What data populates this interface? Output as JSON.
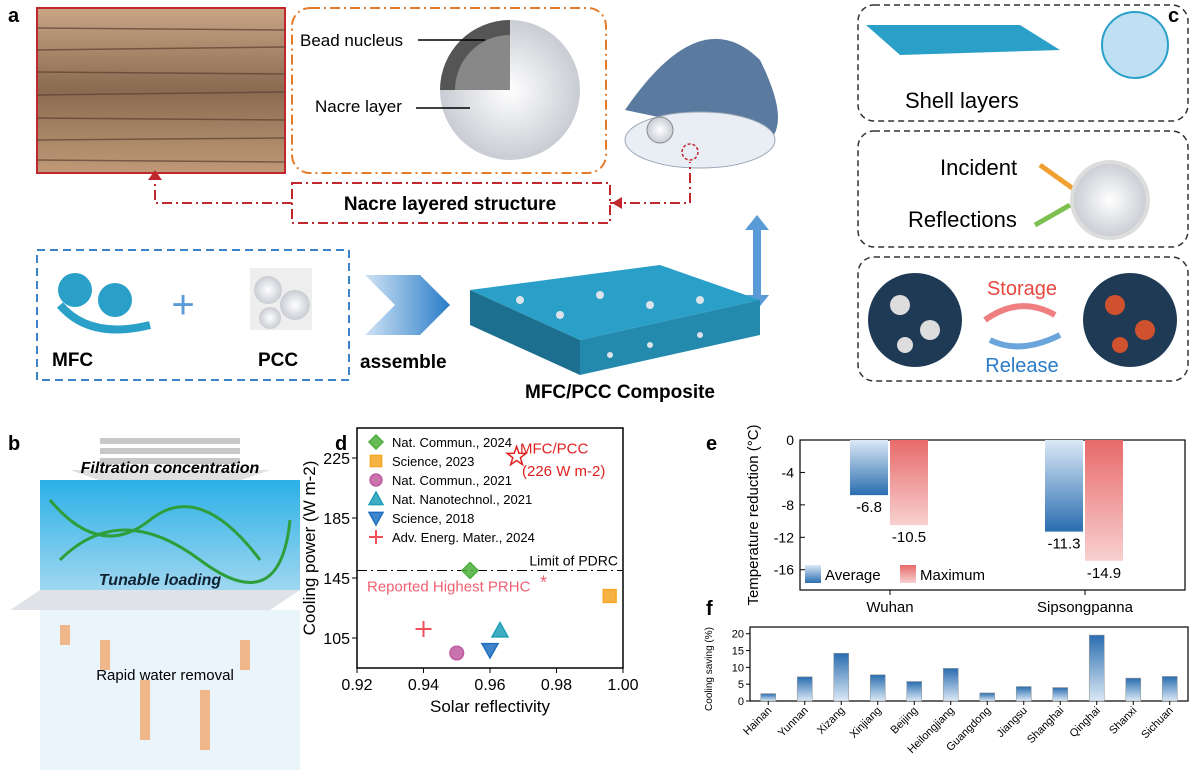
{
  "panel_labels": {
    "a": "a",
    "b": "b",
    "c": "c",
    "d": "d",
    "e": "e",
    "f": "f"
  },
  "panel_a": {
    "bead_nucleus": "Bead nucleus",
    "nacre_layer": "Nacre layer",
    "nacre_structure": "Nacre layered structure",
    "mfc": "MFC",
    "pcc": "PCC",
    "assemble": "assemble",
    "composite": "MFC/PCC Composite"
  },
  "panel_b": {
    "filtration": "Filtration concentration",
    "tunable": "Tunable loading",
    "rapid": "Rapid water removal"
  },
  "panel_c": {
    "shell_layers": "Shell layers",
    "incident": "Incident",
    "reflections": "Reflections",
    "storage": "Storage",
    "release": "Release"
  },
  "colors": {
    "blue": "#2a6db0",
    "red": "#e8483f",
    "orange": "#e47b2a",
    "green": "#4caf3a"
  },
  "chart_data": [
    {
      "id": "d",
      "type": "scatter",
      "xlabel": "Solar reflectivity",
      "ylabel": "Cooling power (W m-2)",
      "xlim": [
        0.92,
        1.0
      ],
      "ylim": [
        85,
        245
      ],
      "xticks": [
        "0.92",
        "0.94",
        "0.96",
        "0.98",
        "1.00"
      ],
      "yticks": [
        "105",
        "145",
        "185",
        "225"
      ],
      "hline": {
        "y": 150,
        "label": "Limit of PDRC"
      },
      "annotation": "Reported Highest PRHC",
      "annotation_mark": "*",
      "highlight": {
        "label": "MFC/PCC",
        "value_label": "(226 W m-2)",
        "x": 0.968,
        "y": 226
      },
      "series": [
        {
          "name": "Nat. Commun., 2024",
          "marker": "diamond",
          "color": "#4caf3a",
          "x": 0.954,
          "y": 150
        },
        {
          "name": "Science, 2023",
          "marker": "square",
          "color": "#f5a623",
          "x": 0.996,
          "y": 133
        },
        {
          "name": "Nat. Commun., 2021",
          "marker": "circle",
          "color": "#c05ca0",
          "x": 0.95,
          "y": 95
        },
        {
          "name": "Nat. Nanotechnol., 2021",
          "marker": "triangle-up",
          "color": "#1f9fb8",
          "x": 0.963,
          "y": 110
        },
        {
          "name": "Science, 2018",
          "marker": "triangle-down",
          "color": "#1f6fc0",
          "x": 0.96,
          "y": 97
        },
        {
          "name": "Adv. Energ. Mater., 2024",
          "marker": "plus",
          "color": "#f0505a",
          "x": 0.94,
          "y": 111
        }
      ]
    },
    {
      "id": "e",
      "type": "bar",
      "ylabel": "Temperature reduction (°C)",
      "ylim": [
        -18.5,
        0
      ],
      "yticks": [
        "0",
        "-4",
        "-8",
        "-12",
        "-16"
      ],
      "categories": [
        "Wuhan",
        "Sipsongpanna"
      ],
      "series": [
        {
          "name": "Average",
          "color": "#2a6db0",
          "values": [
            -6.8,
            -11.3
          ],
          "labels": [
            "-6.8",
            "-11.3"
          ]
        },
        {
          "name": "Maximum",
          "color": "#e86a6a",
          "values": [
            -10.5,
            -14.9
          ],
          "labels": [
            "-10.5",
            "-14.9"
          ]
        }
      ]
    },
    {
      "id": "f",
      "type": "bar",
      "ylabel": "Cooling saving (%)",
      "ylim": [
        0,
        22
      ],
      "yticks": [
        "0",
        "5",
        "10",
        "15",
        "20"
      ],
      "categories": [
        "Hainan",
        "Yunnan",
        "Xizang",
        "Xinjiang",
        "Beijing",
        "Heilongjiang",
        "Guangdong",
        "Jiangsu",
        "Shanghai",
        "Qinghai",
        "Shanxi",
        "Sichuan"
      ],
      "values": [
        2.2,
        7.2,
        14.2,
        7.8,
        5.8,
        9.7,
        2.4,
        4.3,
        4.0,
        19.6,
        6.8,
        7.3
      ]
    }
  ]
}
